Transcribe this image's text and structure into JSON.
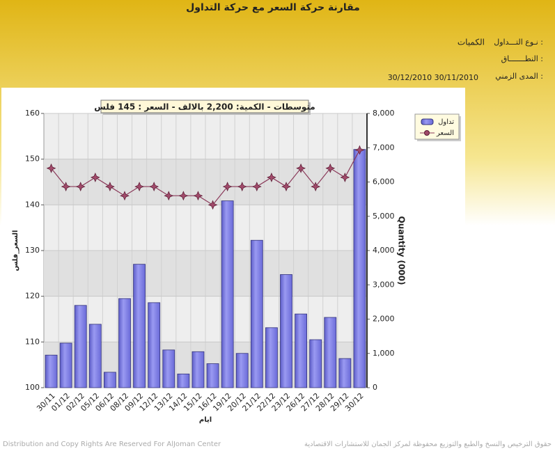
{
  "header": {
    "title": "مقارنة حركة السعر مع حركة التداول",
    "fields": [
      {
        "label": "نـوع التـــداول :",
        "value": "الكميات"
      },
      {
        "label": "النطـــــــاق :"
      },
      {
        "label": "المدى الزمني :",
        "value": "30/12/2010 30/11/2010"
      }
    ]
  },
  "chart_data": {
    "type": "bar-line",
    "annotation": "متوسطات - الكمية: 2,200 بالالف  - السعر : 145 فلس",
    "x_label": "ايام",
    "y_label": "السعر_فلس",
    "y2_label": "Quantity (000)",
    "categories": [
      "30/11",
      "01/12",
      "02/12",
      "05/12",
      "06/12",
      "08/12",
      "09/12",
      "12/12",
      "13/12",
      "14/12",
      "15/12",
      "16/12",
      "19/12",
      "20/12",
      "21/12",
      "22/12",
      "23/12",
      "26/12",
      "27/12",
      "28/12",
      "29/12",
      "30/12"
    ],
    "series": [
      {
        "name": "تداول",
        "type": "bar",
        "axis": "y2",
        "color": "#7b7be6",
        "values": [
          950,
          1300,
          2400,
          1850,
          450,
          2600,
          3600,
          2480,
          1100,
          400,
          1050,
          700,
          5450,
          1000,
          4300,
          1750,
          3300,
          2150,
          1400,
          2050,
          850,
          6950
        ]
      },
      {
        "name": "السعر",
        "type": "line",
        "color": "#8b3a5a",
        "values": [
          148,
          144,
          144,
          146,
          144,
          142,
          144,
          144,
          142,
          142,
          142,
          140,
          144,
          144,
          144,
          146,
          144,
          148,
          144,
          148,
          146,
          152
        ]
      }
    ],
    "ylim": [
      100,
      160
    ],
    "yticks": [
      100,
      110,
      120,
      130,
      140,
      150,
      160
    ],
    "y2lim": [
      0,
      8000
    ],
    "y2ticks": [
      0,
      {
        "value": 1000,
        "label": "1,000"
      },
      {
        "value": 2000,
        "label": "2,000"
      },
      {
        "value": 3000,
        "label": "3,000"
      },
      {
        "value": 4000,
        "label": "4,000"
      },
      {
        "value": 5000,
        "label": "5,000"
      },
      {
        "value": 6000,
        "label": "6,000"
      },
      {
        "value": 7000,
        "label": "7,000"
      },
      {
        "value": 8000,
        "label": "8,000"
      }
    ],
    "grid": true,
    "legend": "top-right"
  },
  "footer": {
    "left": "Distribution and Copy Rights Are Reserved For AlJoman Center",
    "right": "حقوق الترخيص والنسخ والطبع والتوزيع محفوظة لمركز الجمان للاستشارات الاقتصادية"
  }
}
